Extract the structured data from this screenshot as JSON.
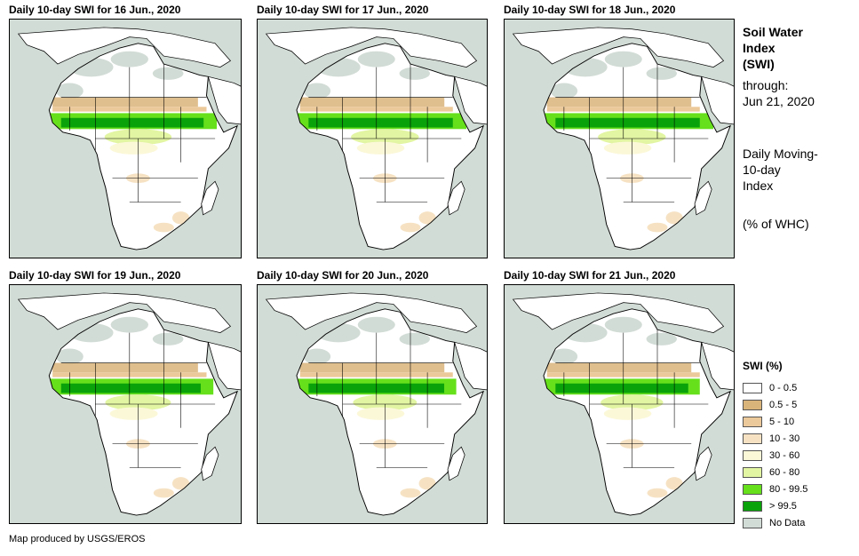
{
  "panels": [
    {
      "title": "Daily 10-day SWI for 16 Jun., 2020",
      "wet_extent": 0.98
    },
    {
      "title": "Daily 10-day SWI for 17 Jun., 2020",
      "wet_extent": 1.0
    },
    {
      "title": "Daily 10-day SWI for 18 Jun., 2020",
      "wet_extent": 1.0
    },
    {
      "title": "Daily 10-day SWI for 19 Jun., 2020",
      "wet_extent": 0.96
    },
    {
      "title": "Daily 10-day SWI for 20 Jun., 2020",
      "wet_extent": 0.94
    },
    {
      "title": "Daily 10-day SWI for 21 Jun., 2020",
      "wet_extent": 0.92
    }
  ],
  "side": {
    "title_line1": "Soil Water",
    "title_line2": "Index",
    "title_line3": "(SWI)",
    "through_label": "through:",
    "through_date": "Jun 21, 2020",
    "desc_line1": "Daily Moving-",
    "desc_line2": "10-day",
    "desc_line3": "Index",
    "unit": "(% of WHC)"
  },
  "legend": {
    "title": "SWI (%)",
    "items": [
      {
        "label": "0 - 0.5",
        "color": "#ffffff"
      },
      {
        "label": "0.5 - 5",
        "color": "#d9b47a"
      },
      {
        "label": "5 - 10",
        "color": "#ecc99a"
      },
      {
        "label": "10 - 30",
        "color": "#f6e2c3"
      },
      {
        "label": "30 - 60",
        "color": "#fbf8d8"
      },
      {
        "label": "60 - 80",
        "color": "#e2f5a2"
      },
      {
        "label": "80 - 99.5",
        "color": "#66e01b"
      },
      {
        "label": "> 99.5",
        "color": "#0aa20a"
      },
      {
        "label": "No Data",
        "color": "#d2dcd6"
      }
    ]
  },
  "credit": "Map produced by USGS/EROS"
}
